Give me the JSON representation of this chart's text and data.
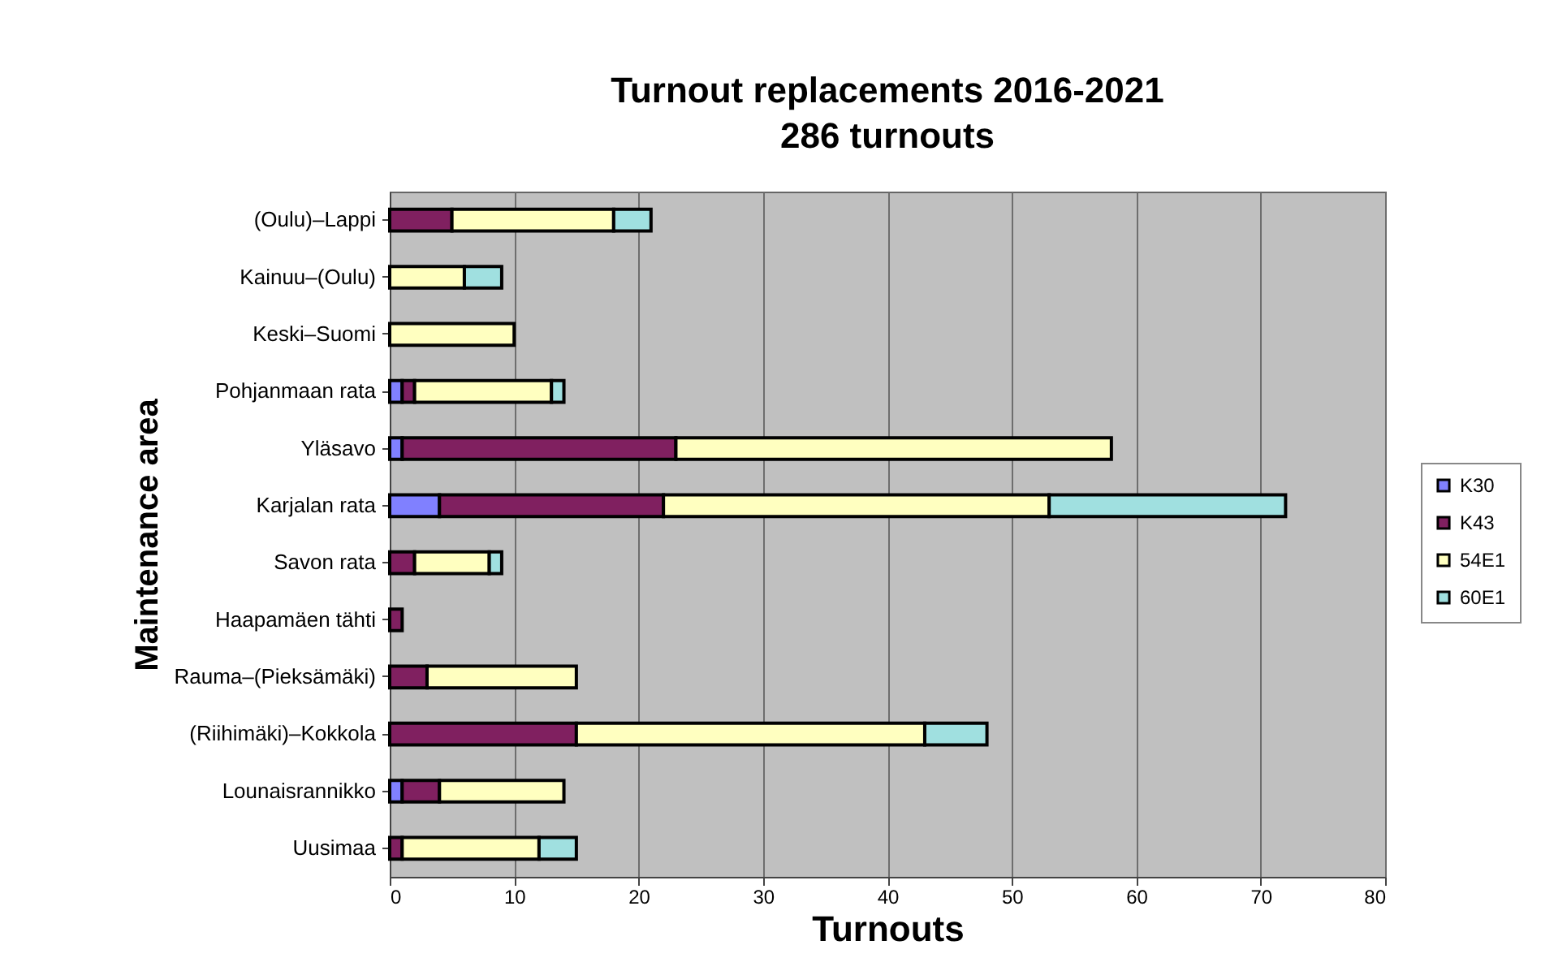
{
  "chart_data": {
    "type": "bar",
    "orientation": "horizontal",
    "stacked": true,
    "title": "Turnout replacements 2016-2021",
    "subtitle": "286 turnouts",
    "xlabel": "Turnouts",
    "ylabel": "Maintenance area",
    "categories": [
      "(Oulu)–Lappi",
      "Kainuu–(Oulu)",
      "Keski–Suomi",
      "Pohjanmaan rata",
      "Yläsavo",
      "Karjalan rata",
      "Savon rata",
      "Haapamäen tähti",
      "Rauma–(Pieksämäki)",
      "(Riihimäki)–Kokkola",
      "Lounaisrannikko",
      "Uusimaa"
    ],
    "series": [
      {
        "name": "K30",
        "color": "#8080ff",
        "values": [
          0,
          0,
          0,
          1,
          1,
          4,
          0,
          0,
          0,
          0,
          1,
          0
        ]
      },
      {
        "name": "K43",
        "color": "#802060",
        "values": [
          5,
          0,
          0,
          1,
          22,
          18,
          2,
          1,
          3,
          15,
          3,
          1
        ]
      },
      {
        "name": "54E1",
        "color": "#ffffc0",
        "values": [
          13,
          6,
          10,
          11,
          35,
          31,
          6,
          0,
          12,
          28,
          10,
          11
        ]
      },
      {
        "name": "60E1",
        "color": "#a0e0e0",
        "values": [
          3,
          3,
          0,
          1,
          0,
          19,
          1,
          0,
          0,
          5,
          0,
          3
        ]
      }
    ],
    "xlim": [
      0,
      80
    ],
    "xticks": [
      0,
      10,
      20,
      30,
      40,
      50,
      60,
      70,
      80
    ],
    "grid": "x",
    "legend": "right"
  }
}
